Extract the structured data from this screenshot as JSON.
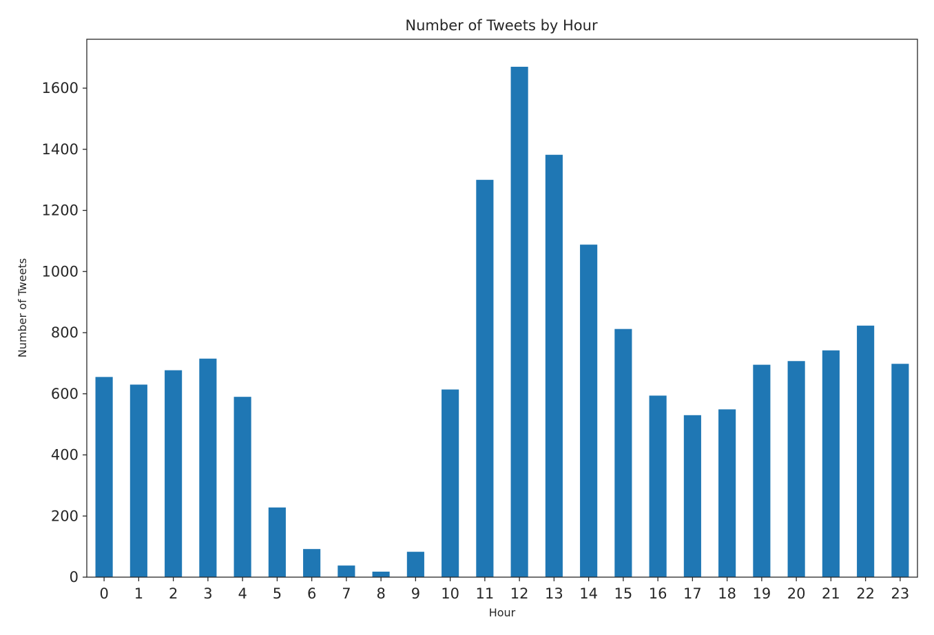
{
  "chart_data": {
    "type": "bar",
    "title": "Number of Tweets by Hour",
    "xlabel": "Hour",
    "ylabel": "Number of Tweets",
    "categories": [
      "0",
      "1",
      "2",
      "3",
      "4",
      "5",
      "6",
      "7",
      "8",
      "9",
      "10",
      "11",
      "12",
      "13",
      "14",
      "15",
      "16",
      "17",
      "18",
      "19",
      "20",
      "21",
      "22",
      "23"
    ],
    "values": [
      655,
      630,
      677,
      715,
      590,
      228,
      92,
      38,
      18,
      83,
      614,
      1300,
      1670,
      1382,
      1088,
      812,
      594,
      530,
      549,
      695,
      707,
      742,
      823,
      698
    ],
    "ylim": [
      0,
      1760
    ],
    "yticks": [
      0,
      200,
      400,
      600,
      800,
      1000,
      1200,
      1400,
      1600
    ],
    "bar_color": "#1f77b4",
    "grid": false,
    "legend": "none"
  }
}
